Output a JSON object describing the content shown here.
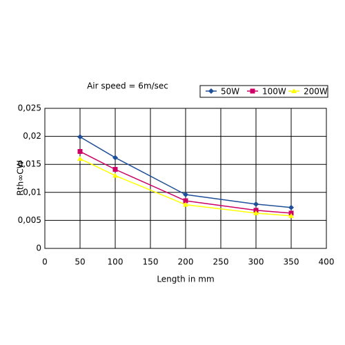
{
  "chart_data": {
    "type": "line",
    "title": "Air speed = 6m/sec",
    "x_label": "Length in mm",
    "y_label": "Rth∞CW",
    "x": [
      50,
      100,
      200,
      300,
      350
    ],
    "series": [
      {
        "name": "50W",
        "color": "#1f4e99",
        "marker": "diamond",
        "values": [
          0.0199,
          0.0162,
          0.0096,
          0.0079,
          0.0073
        ]
      },
      {
        "name": "100W",
        "color": "#cc0066",
        "marker": "square",
        "values": [
          0.0173,
          0.0141,
          0.0085,
          0.0068,
          0.0063
        ]
      },
      {
        "name": "200W",
        "color": "#ffff00",
        "marker": "triangle",
        "values": [
          0.016,
          0.013,
          0.0078,
          0.0063,
          0.0058
        ]
      }
    ],
    "xlim": [
      0,
      400
    ],
    "xticks": [
      0,
      50,
      100,
      150,
      200,
      250,
      300,
      350,
      400
    ],
    "ylim": [
      0,
      0.025
    ],
    "yticks": [
      0,
      {
        "value": 0.005,
        "label": "0,005"
      },
      {
        "value": 0.01,
        "label": "0,01"
      },
      {
        "value": 0.015,
        "label": "0,015"
      },
      {
        "value": 0.02,
        "label": "0,02"
      },
      {
        "value": 0.025,
        "label": "0,025"
      }
    ],
    "grid": true
  }
}
